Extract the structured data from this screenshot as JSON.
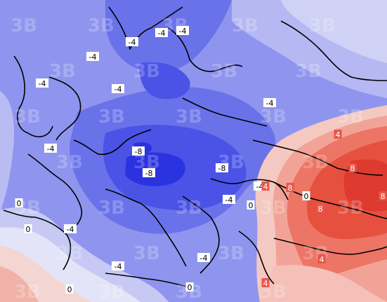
{
  "map": {
    "contour_labels": [
      "-4",
      "-4",
      "-4",
      "-4",
      "-4",
      "-4",
      "-4",
      "-4",
      "-4",
      "-4",
      "-4",
      "-4",
      "-4",
      "-8",
      "-8",
      "-8",
      "0",
      "0",
      "0",
      "0",
      "0",
      "0",
      "4",
      "4",
      "4",
      "4",
      "8",
      "8",
      "8",
      "8"
    ],
    "watermark_text": "3B",
    "colors": {
      "neg8": "#2a2fe0",
      "neg6": "#4c55ea",
      "neg4": "#6d76ec",
      "neg2": "#9499ee",
      "neg1": "#b9bcf2",
      "zero": "#d8daf6",
      "pos1": "#f6d4d0",
      "pos2": "#f2aaa0",
      "pos4": "#ee7a6b",
      "pos6": "#e9564a",
      "pos8": "#e13b34",
      "coast": "#000000"
    }
  }
}
